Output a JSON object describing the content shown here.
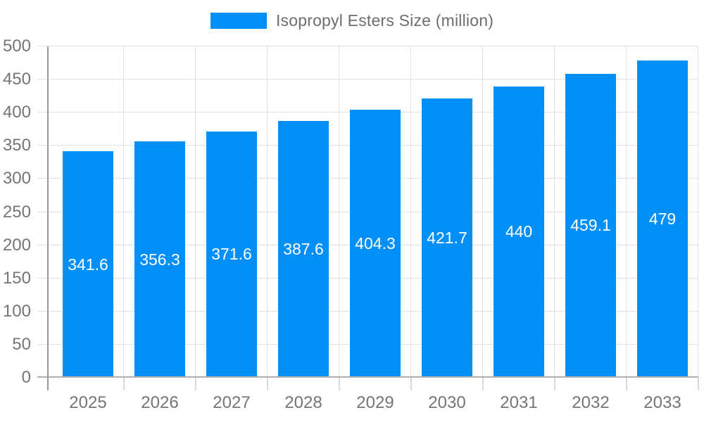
{
  "legend": {
    "label": "Isopropyl Esters Size (million)"
  },
  "chart_data": {
    "type": "bar",
    "title": "",
    "xlabel": "",
    "ylabel": "",
    "categories": [
      "2025",
      "2026",
      "2027",
      "2028",
      "2029",
      "2030",
      "2031",
      "2032",
      "2033"
    ],
    "series": [
      {
        "name": "Isopropyl Esters Size (million)",
        "values": [
          341.6,
          356.3,
          371.6,
          387.6,
          404.3,
          421.7,
          440,
          459.1,
          479
        ]
      }
    ],
    "value_labels_shown": true,
    "ylim": [
      0,
      500
    ],
    "yticks": [
      0,
      50,
      100,
      150,
      200,
      250,
      300,
      350,
      400,
      450,
      500
    ],
    "grid": true,
    "legend_position": "top",
    "colors": {
      "bar": "#0290f8",
      "value_label": "#ffffff",
      "axis_text": "#757575",
      "legend_text": "#6e6e6e",
      "gridline": "#e2e2e2",
      "axis_line": "#999999",
      "baseline": "#b0b0b0",
      "background": "#ffffff"
    }
  }
}
